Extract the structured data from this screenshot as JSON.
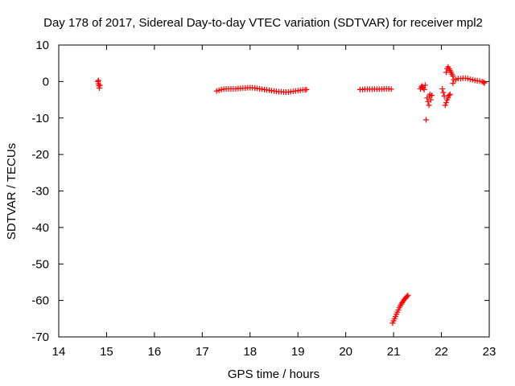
{
  "chart_data": {
    "type": "scatter",
    "title": "Day 178 of 2017, Sidereal Day-to-day VTEC variation (SDTVAR) for receiver mpl2",
    "xlabel": "GPS time / hours",
    "ylabel": "SDTVAR / TECUs",
    "xlim": [
      14,
      23
    ],
    "ylim": [
      -70,
      10
    ],
    "xticks": [
      14,
      15,
      16,
      17,
      18,
      19,
      20,
      21,
      22,
      23
    ],
    "yticks": [
      -70,
      -60,
      -50,
      -40,
      -30,
      -20,
      -10,
      0,
      10
    ],
    "grid": false,
    "marker": "+",
    "color": "#ff0000",
    "series": [
      {
        "name": "SDTVAR",
        "points": [
          [
            14.82,
            0
          ],
          [
            14.83,
            -0.6
          ],
          [
            14.84,
            -1.2
          ],
          [
            14.85,
            -1.8
          ],
          [
            14.86,
            -1.0
          ],
          [
            14.83,
            0.3
          ],
          [
            17.3,
            -2.6
          ],
          [
            17.35,
            -2.4
          ],
          [
            17.4,
            -2.2
          ],
          [
            17.45,
            -2.1
          ],
          [
            17.5,
            -2.0
          ],
          [
            17.55,
            -2.0
          ],
          [
            17.6,
            -2.0
          ],
          [
            17.65,
            -2.0
          ],
          [
            17.7,
            -2.0
          ],
          [
            17.75,
            -1.9
          ],
          [
            17.8,
            -1.9
          ],
          [
            17.85,
            -1.8
          ],
          [
            17.9,
            -1.8
          ],
          [
            17.95,
            -1.7
          ],
          [
            18.0,
            -1.7
          ],
          [
            18.05,
            -1.7
          ],
          [
            18.1,
            -1.8
          ],
          [
            18.15,
            -1.9
          ],
          [
            18.2,
            -2.0
          ],
          [
            18.25,
            -2.1
          ],
          [
            18.3,
            -2.2
          ],
          [
            18.35,
            -2.3
          ],
          [
            18.4,
            -2.4
          ],
          [
            18.45,
            -2.5
          ],
          [
            18.5,
            -2.6
          ],
          [
            18.55,
            -2.7
          ],
          [
            18.6,
            -2.8
          ],
          [
            18.65,
            -2.8
          ],
          [
            18.7,
            -2.9
          ],
          [
            18.75,
            -2.9
          ],
          [
            18.8,
            -2.9
          ],
          [
            18.85,
            -2.8
          ],
          [
            18.9,
            -2.7
          ],
          [
            18.95,
            -2.6
          ],
          [
            19.0,
            -2.5
          ],
          [
            19.05,
            -2.4
          ],
          [
            19.1,
            -2.3
          ],
          [
            19.15,
            -2.3
          ],
          [
            19.18,
            -2.2
          ],
          [
            20.3,
            -2.2
          ],
          [
            20.35,
            -2.2
          ],
          [
            20.4,
            -2.1
          ],
          [
            20.45,
            -2.1
          ],
          [
            20.5,
            -2.1
          ],
          [
            20.55,
            -2.1
          ],
          [
            20.6,
            -2.1
          ],
          [
            20.65,
            -2.1
          ],
          [
            20.7,
            -2.1
          ],
          [
            20.75,
            -2.1
          ],
          [
            20.8,
            -2.0
          ],
          [
            20.85,
            -2.0
          ],
          [
            20.9,
            -2.0
          ],
          [
            20.95,
            -2.1
          ],
          [
            20.98,
            -66.2
          ],
          [
            21.0,
            -65.6
          ],
          [
            21.02,
            -65.0
          ],
          [
            21.04,
            -64.4
          ],
          [
            21.06,
            -63.8
          ],
          [
            21.08,
            -63.2
          ],
          [
            21.1,
            -62.6
          ],
          [
            21.12,
            -62.0
          ],
          [
            21.14,
            -61.5
          ],
          [
            21.16,
            -61.0
          ],
          [
            21.18,
            -60.6
          ],
          [
            21.2,
            -60.2
          ],
          [
            21.22,
            -59.8
          ],
          [
            21.24,
            -59.5
          ],
          [
            21.26,
            -59.2
          ],
          [
            21.28,
            -58.9
          ],
          [
            21.3,
            -58.6
          ],
          [
            21.56,
            -2.0
          ],
          [
            21.58,
            -1.5
          ],
          [
            21.6,
            -1.2
          ],
          [
            21.62,
            -1.8
          ],
          [
            21.64,
            -2.2
          ],
          [
            21.66,
            -1.0
          ],
          [
            21.6,
            -1.6
          ],
          [
            21.68,
            -10.5
          ],
          [
            21.7,
            -4.5
          ],
          [
            21.72,
            -5.5
          ],
          [
            21.74,
            -6.5
          ],
          [
            21.75,
            -4.0
          ],
          [
            21.76,
            -3.5
          ],
          [
            21.78,
            -5.0
          ],
          [
            21.8,
            -3.8
          ],
          [
            22.02,
            -2.0
          ],
          [
            22.04,
            -3.0
          ],
          [
            22.06,
            -4.0
          ],
          [
            22.08,
            -6.5
          ],
          [
            22.1,
            -5.8
          ],
          [
            22.12,
            -5.0
          ],
          [
            22.14,
            -4.5
          ],
          [
            22.16,
            -3.8
          ],
          [
            22.18,
            -3.5
          ],
          [
            22.1,
            2.5
          ],
          [
            22.12,
            3.5
          ],
          [
            22.14,
            4.0
          ],
          [
            22.16,
            3.5
          ],
          [
            22.18,
            3.0
          ],
          [
            22.2,
            2.5
          ],
          [
            22.22,
            2.0
          ],
          [
            22.24,
            1.5
          ],
          [
            22.26,
            0.5
          ],
          [
            22.24,
            -0.5
          ],
          [
            22.3,
            0.5
          ],
          [
            22.35,
            0.8
          ],
          [
            22.4,
            0.8
          ],
          [
            22.45,
            0.9
          ],
          [
            22.5,
            0.9
          ],
          [
            22.55,
            0.8
          ],
          [
            22.6,
            0.6
          ],
          [
            22.65,
            0.5
          ],
          [
            22.7,
            0.3
          ],
          [
            22.75,
            0.2
          ],
          [
            22.8,
            0.1
          ],
          [
            22.85,
            0.0
          ],
          [
            22.88,
            -0.2
          ],
          [
            22.9,
            -0.4
          ]
        ]
      }
    ]
  }
}
